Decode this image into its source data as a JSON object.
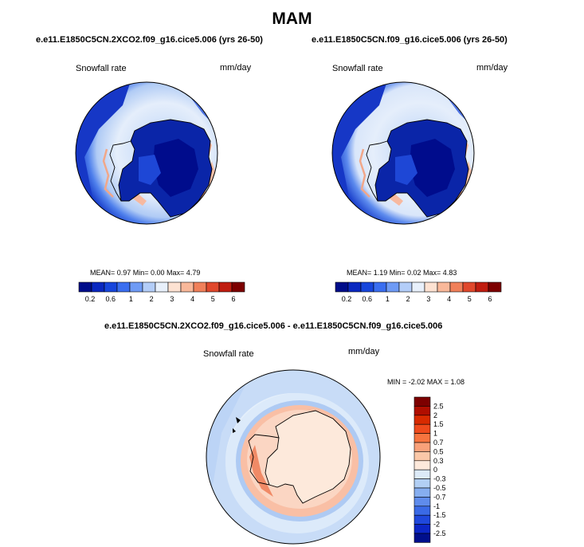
{
  "figure": {
    "title": "MAM",
    "diff_title": "e.e11.E1850C5CN.2XCO2.f09_g16.cice5.006 - e.e11.E1850C5CN.f09_g16.cice5.006"
  },
  "panels": [
    {
      "case": "e.e11.E1850C5CN.2XCO2.f09_g16.cice5.006 (yrs 26-50)",
      "variable": "Snowfall rate",
      "units": "mm/day",
      "stats": "MEAN=   0.97  Min=   0.00  Max=   4.79",
      "mean": 0.97,
      "min": 0.0,
      "max": 4.79
    },
    {
      "case": "e.e11.E1850C5CN.f09_g16.cice5.006 (yrs 26-50)",
      "variable": "Snowfall rate",
      "units": "mm/day",
      "stats": "MEAN=   1.19  Min=   0.02  Max=   4.83",
      "mean": 1.19,
      "min": 0.02,
      "max": 4.83
    }
  ],
  "diff_panel": {
    "variable": "Snowfall rate",
    "units": "mm/day",
    "stats": "MIN =  -2.02 MAX =   1.08",
    "min": -2.02,
    "max": 1.08
  },
  "colorbar_main": {
    "colors": [
      "#000d8a",
      "#0a28c0",
      "#1746dc",
      "#3a6ef0",
      "#6f9bf5",
      "#b3cdf8",
      "#e8f0fb",
      "#fde2d2",
      "#f9b89a",
      "#f0805a",
      "#e0482c",
      "#c01d10",
      "#7d0000"
    ],
    "labels": [
      "0.2",
      "0.6",
      "1",
      "2",
      "3",
      "4",
      "5",
      "6"
    ]
  },
  "colorbar_diff": {
    "colors": [
      "#7d0000",
      "#b00e00",
      "#d82a00",
      "#ef4a1c",
      "#f7743f",
      "#f9a17a",
      "#fbc8a8",
      "#fde9db",
      "#dceaf8",
      "#b2cff4",
      "#86aef0",
      "#5f8cec",
      "#3a6ae6",
      "#1f48dc",
      "#0c26c6",
      "#000f8c"
    ],
    "labels": [
      "2.5",
      "2",
      "1.5",
      "1",
      "0.7",
      "0.5",
      "0.3",
      "0",
      "-0.3",
      "-0.5",
      "-0.7",
      "-1",
      "-1.5",
      "-2",
      "-2.5"
    ]
  }
}
